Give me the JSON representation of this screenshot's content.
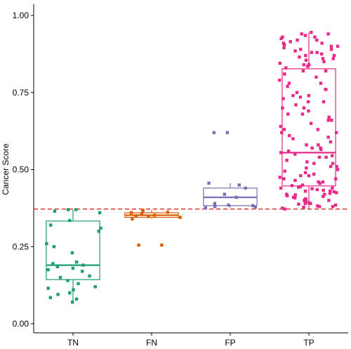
{
  "chart_data": {
    "type": "box-jitter",
    "title": "",
    "xlabel": "",
    "ylabel": "Cancer Score",
    "ylim": [
      0.0,
      1.0
    ],
    "yticks": [
      "0.00",
      "0.25",
      "0.50",
      "0.75",
      "1.00"
    ],
    "categories": [
      "TN",
      "FN",
      "FP",
      "TP"
    ],
    "threshold": 0.372,
    "threshold_color": "#e0413a",
    "grid": false,
    "boxes": [
      {
        "name": "TN",
        "color": "#1b9e77",
        "q1": 0.143,
        "median": 0.19,
        "q3": 0.333,
        "whisker_low": 0.07,
        "whisker_high": 0.37
      },
      {
        "name": "FN",
        "color": "#d95f02",
        "q1": 0.345,
        "median": 0.352,
        "q3": 0.36,
        "whisker_low": 0.341,
        "whisker_high": 0.368
      },
      {
        "name": "FP",
        "color": "#7570b3",
        "q1": 0.383,
        "median": 0.41,
        "q3": 0.44,
        "whisker_low": 0.376,
        "whisker_high": 0.456
      },
      {
        "name": "TP",
        "color": "#e7298a",
        "q1": 0.447,
        "median": 0.555,
        "q3": 0.827,
        "whisker_low": 0.372,
        "whisker_high": 0.945
      }
    ],
    "points": {
      "TN": [
        0.07,
        0.08,
        0.085,
        0.095,
        0.1,
        0.11,
        0.115,
        0.12,
        0.13,
        0.14,
        0.15,
        0.155,
        0.17,
        0.175,
        0.18,
        0.185,
        0.19,
        0.195,
        0.2,
        0.23,
        0.25,
        0.26,
        0.3,
        0.31,
        0.32,
        0.335,
        0.36,
        0.365,
        0.37,
        0.37
      ],
      "FN": [
        0.255,
        0.255,
        0.34,
        0.345,
        0.348,
        0.35,
        0.352,
        0.355,
        0.36,
        0.362,
        0.365,
        0.368
      ],
      "FP": [
        0.376,
        0.378,
        0.38,
        0.383,
        0.385,
        0.39,
        0.41,
        0.42,
        0.44,
        0.45,
        0.456,
        0.62,
        0.62
      ],
      "TP": [
        0.372,
        0.375,
        0.378,
        0.38,
        0.382,
        0.385,
        0.388,
        0.39,
        0.393,
        0.395,
        0.4,
        0.403,
        0.405,
        0.408,
        0.41,
        0.413,
        0.415,
        0.418,
        0.42,
        0.423,
        0.425,
        0.428,
        0.43,
        0.433,
        0.435,
        0.438,
        0.44,
        0.443,
        0.445,
        0.448,
        0.45,
        0.455,
        0.46,
        0.465,
        0.47,
        0.475,
        0.48,
        0.485,
        0.49,
        0.495,
        0.5,
        0.505,
        0.51,
        0.52,
        0.525,
        0.53,
        0.54,
        0.545,
        0.55,
        0.555,
        0.56,
        0.565,
        0.57,
        0.58,
        0.59,
        0.6,
        0.605,
        0.61,
        0.62,
        0.63,
        0.64,
        0.65,
        0.66,
        0.67,
        0.68,
        0.69,
        0.7,
        0.71,
        0.72,
        0.73,
        0.735,
        0.74,
        0.75,
        0.76,
        0.77,
        0.78,
        0.79,
        0.8,
        0.81,
        0.82,
        0.83,
        0.835,
        0.84,
        0.845,
        0.85,
        0.855,
        0.86,
        0.865,
        0.87,
        0.875,
        0.88,
        0.885,
        0.89,
        0.895,
        0.9,
        0.905,
        0.91,
        0.915,
        0.92,
        0.925,
        0.93,
        0.935,
        0.94,
        0.945,
        0.38,
        0.39,
        0.4,
        0.42,
        0.44,
        0.46,
        0.48,
        0.52,
        0.54,
        0.58,
        0.62,
        0.66,
        0.7,
        0.74,
        0.78,
        0.82,
        0.86,
        0.88,
        0.9,
        0.92,
        0.94,
        0.43,
        0.47,
        0.51,
        0.57,
        0.63,
        0.68,
        0.72,
        0.76,
        0.84,
        0.87,
        0.89,
        0.91,
        0.93
      ]
    }
  }
}
